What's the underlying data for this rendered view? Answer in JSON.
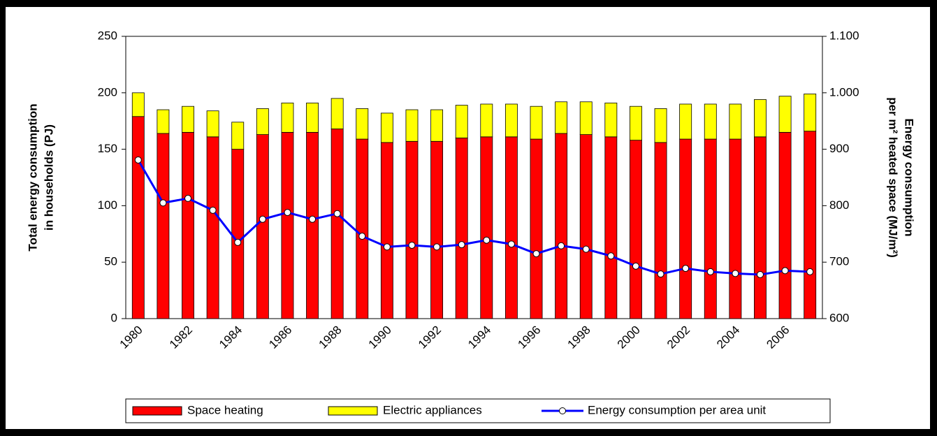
{
  "chart_data": {
    "type": "bar",
    "stacked": true,
    "y_label": [
      "Total energy consumption",
      "in households (PJ)"
    ],
    "y2_label": [
      "Energy consumption",
      "per m² heated space (MJ/m²)"
    ],
    "categories": [
      "1980",
      null,
      "1982",
      null,
      "1984",
      null,
      "1986",
      null,
      "1988",
      null,
      "1990",
      null,
      "1992",
      null,
      "1994",
      null,
      "1996",
      null,
      "1998",
      null,
      "2000",
      null,
      "2002",
      null,
      "2004",
      null,
      "2006",
      null
    ],
    "series": [
      {
        "name": "Space heating",
        "type": "bar",
        "color": "#ff0000",
        "axis": "y",
        "values": [
          179,
          164,
          165,
          161,
          150,
          163,
          165,
          165,
          168,
          159,
          156,
          157,
          157,
          160,
          161,
          161,
          159,
          164,
          163,
          161,
          158,
          156,
          159,
          159,
          159,
          161,
          165,
          166
        ]
      },
      {
        "name": "Electric appliances",
        "type": "bar",
        "color": "#ffff00",
        "axis": "y",
        "values": [
          21,
          21,
          23,
          23,
          24,
          23,
          26,
          26,
          27,
          27,
          26,
          28,
          28,
          29,
          29,
          29,
          29,
          28,
          29,
          30,
          30,
          30,
          31,
          31,
          31,
          33,
          32,
          33
        ]
      },
      {
        "name": "Energy consumption per area unit",
        "type": "line",
        "color": "#0000ff",
        "axis": "y2",
        "values": [
          881,
          805,
          813,
          792,
          735,
          776,
          788,
          776,
          786,
          746,
          727,
          730,
          727,
          731,
          739,
          732,
          715,
          729,
          723,
          711,
          693,
          679,
          689,
          683,
          680,
          678,
          685,
          683
        ]
      }
    ],
    "ylim": [
      0,
      250
    ],
    "yticks": [
      0,
      50,
      100,
      150,
      200,
      250
    ],
    "y2lim": [
      600,
      1100
    ],
    "y2ticks": [
      600,
      700,
      800,
      900,
      {
        "value": 1000,
        "label": "1.000"
      },
      {
        "value": 1100,
        "label": "1.100"
      }
    ],
    "grid": false,
    "legend": "bottom"
  }
}
